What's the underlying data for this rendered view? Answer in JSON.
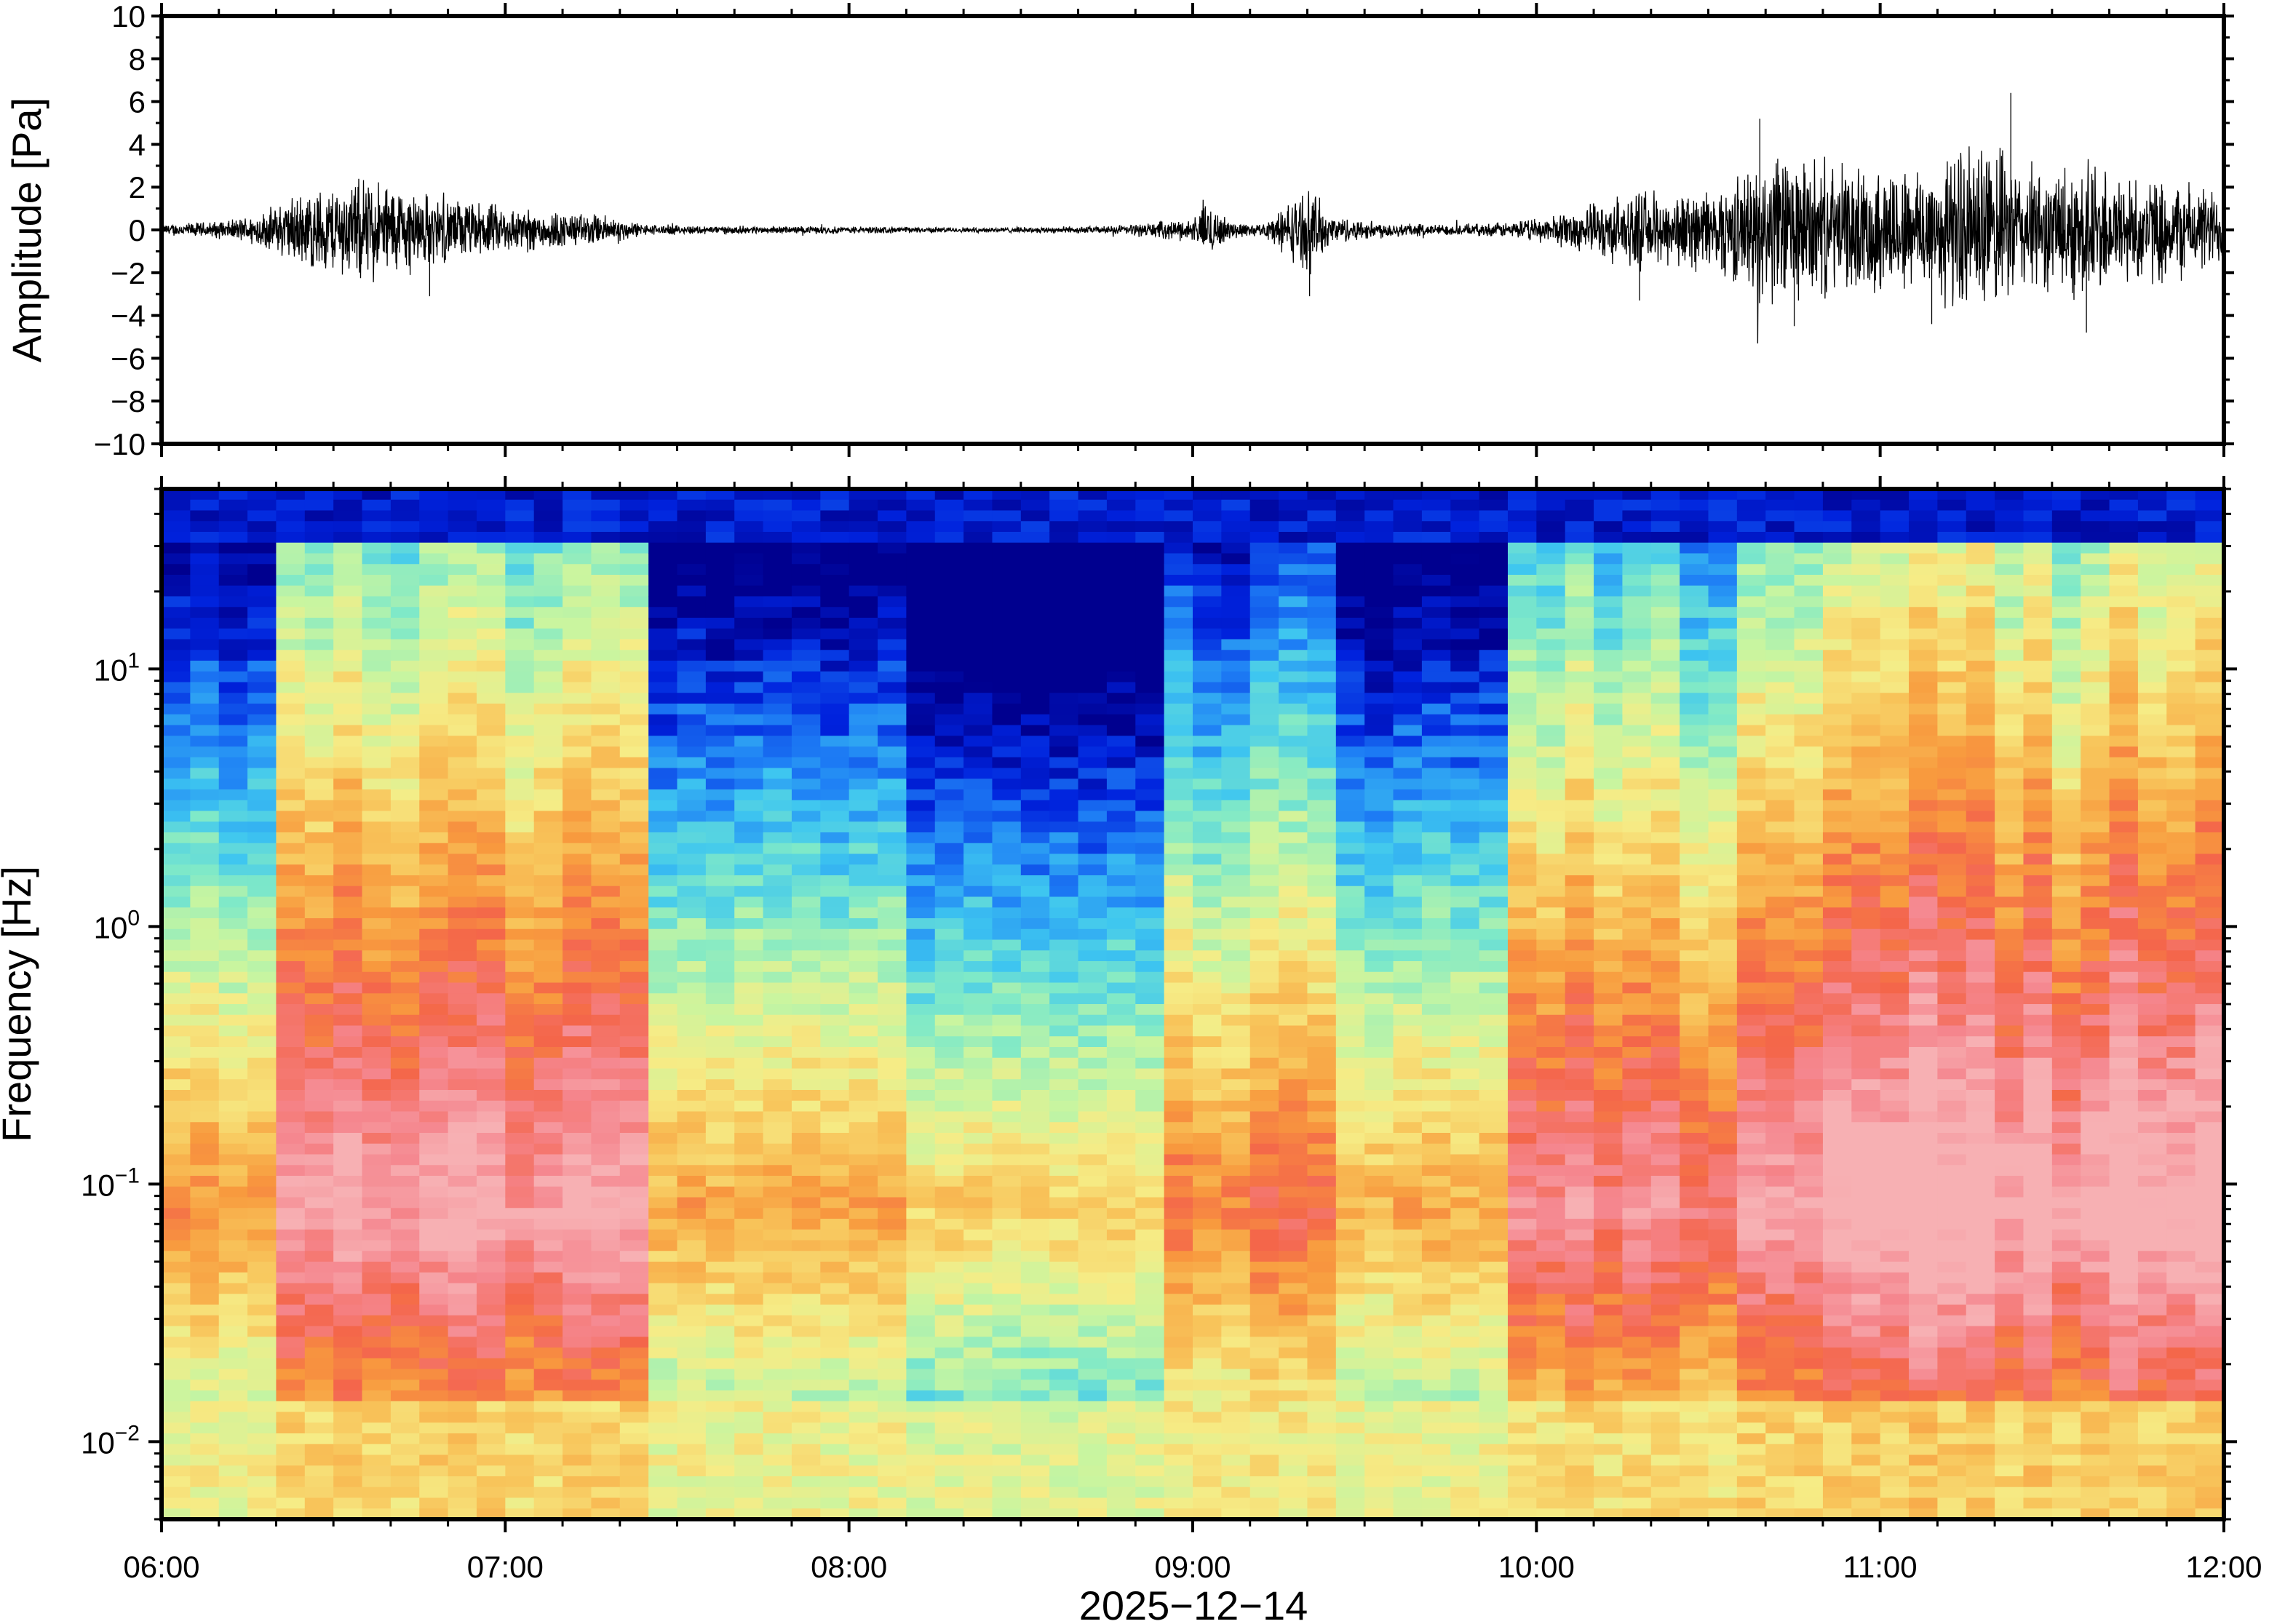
{
  "chart_data": [
    {
      "type": "line",
      "panel": "waveform",
      "ylabel": "Amplitude [Pa]",
      "ylim": [
        -10,
        10
      ],
      "yticks": [
        {
          "value": -10,
          "label": "−10"
        },
        {
          "value": -8,
          "label": "−8"
        },
        {
          "value": -6,
          "label": "−6"
        },
        {
          "value": -4,
          "label": "−4"
        },
        {
          "value": -2,
          "label": "−2"
        },
        {
          "value": 0,
          "label": "0"
        },
        {
          "value": 2,
          "label": "2"
        },
        {
          "value": 4,
          "label": "4"
        },
        {
          "value": 6,
          "label": "6"
        },
        {
          "value": 8,
          "label": "8"
        },
        {
          "value": 10,
          "label": "10"
        }
      ],
      "xlim": [
        "06:00",
        "12:00"
      ],
      "envelope": {
        "time_hours": [
          6.0,
          6.1,
          6.2,
          6.3,
          6.4,
          6.5,
          6.6,
          6.7,
          6.8,
          6.9,
          7.0,
          7.1,
          7.2,
          7.3,
          7.4,
          7.5,
          7.75,
          8.0,
          8.25,
          8.5,
          8.75,
          9.0,
          9.05,
          9.1,
          9.2,
          9.3,
          9.35,
          9.4,
          9.5,
          9.6,
          9.7,
          9.8,
          9.9,
          10.0,
          10.1,
          10.2,
          10.3,
          10.4,
          10.5,
          10.6,
          10.7,
          10.8,
          10.9,
          11.0,
          11.1,
          11.2,
          11.3,
          11.4,
          11.5,
          11.6,
          11.7,
          11.8,
          11.9,
          12.0
        ],
        "peak_pa": [
          0.3,
          0.4,
          0.5,
          1.0,
          2.0,
          2.4,
          2.8,
          2.4,
          1.8,
          1.5,
          1.3,
          1.1,
          0.9,
          0.8,
          0.3,
          0.25,
          0.2,
          0.2,
          0.15,
          0.15,
          0.2,
          0.6,
          1.6,
          0.5,
          0.3,
          1.8,
          2.2,
          0.8,
          0.5,
          0.4,
          0.3,
          0.3,
          0.4,
          0.6,
          1.0,
          1.6,
          2.0,
          2.0,
          2.2,
          3.0,
          4.2,
          3.8,
          3.2,
          3.5,
          3.5,
          4.0,
          4.8,
          3.5,
          3.2,
          3.8,
          3.0,
          2.8,
          2.5,
          2.0
        ]
      },
      "max_spike_pa": 6.4,
      "min_spike_pa": -4.8
    },
    {
      "type": "heatmap",
      "panel": "spectrogram",
      "ylabel": "Frequency [Hz]",
      "yscale": "log",
      "ylim": [
        0.005,
        50
      ],
      "yticks": [
        {
          "value": 0.01,
          "base": "10",
          "exp": "−2"
        },
        {
          "value": 0.1,
          "base": "10",
          "exp": "−1"
        },
        {
          "value": 1,
          "base": "10",
          "exp": "0"
        },
        {
          "value": 10,
          "base": "10",
          "exp": "1"
        }
      ],
      "xlabel": "2025−12−14",
      "xlim": [
        "06:00",
        "12:00"
      ],
      "xticks": [
        "06:00",
        "07:00",
        "08:00",
        "09:00",
        "10:00",
        "11:00",
        "12:00"
      ],
      "colormap": [
        "#00008f",
        "#0022dd",
        "#1e7ff5",
        "#3ec6f0",
        "#7fe9c8",
        "#c8f5a0",
        "#f6ec86",
        "#f8c45a",
        "#f89a3e",
        "#f4664a",
        "#f5868e",
        "#f7b0b3"
      ],
      "time_columns": 72,
      "frequency_rows": 96,
      "activity_by_hour": [
        {
          "start": 6.0,
          "end": 6.3,
          "level": 0.45
        },
        {
          "start": 6.3,
          "end": 7.4,
          "level": 0.95
        },
        {
          "start": 7.4,
          "end": 8.2,
          "level": 0.35
        },
        {
          "start": 8.2,
          "end": 8.9,
          "level": 0.15
        },
        {
          "start": 8.9,
          "end": 9.45,
          "level": 0.55
        },
        {
          "start": 9.45,
          "end": 9.9,
          "level": 0.3
        },
        {
          "start": 9.9,
          "end": 10.6,
          "level": 0.85
        },
        {
          "start": 10.6,
          "end": 12.0,
          "level": 1.1
        }
      ]
    }
  ]
}
